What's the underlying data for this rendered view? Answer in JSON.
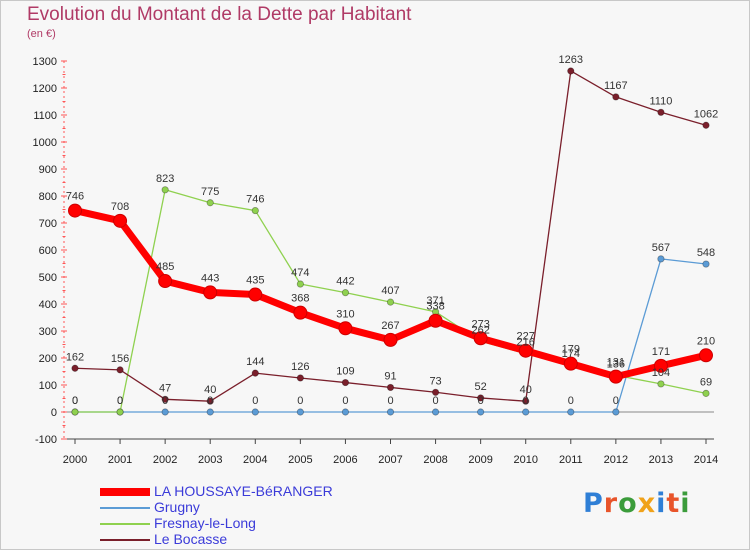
{
  "title": "Evolution du Montant de la Dette par Habitant",
  "subtitle": "(en €)",
  "logo": {
    "text": "Proxiti",
    "colors": [
      "#2f7fd6",
      "#e8542a",
      "#3b9c3b",
      "#f0a21a",
      "#2f7fd6",
      "#e8542a",
      "#3b9c3b"
    ]
  },
  "chart_data": {
    "type": "line",
    "title": "Evolution du Montant de la Dette par Habitant",
    "ylabel": "(en €)",
    "xlabel": "",
    "x": [
      "2000",
      "2001",
      "2002",
      "2003",
      "2004",
      "2005",
      "2006",
      "2007",
      "2008",
      "2009",
      "2010",
      "2011",
      "2012",
      "2013",
      "2014"
    ],
    "ylim": [
      -100,
      1300
    ],
    "yticks": [
      -100,
      0,
      100,
      200,
      300,
      400,
      500,
      600,
      700,
      800,
      900,
      1000,
      1100,
      1200,
      1300
    ],
    "grid": false,
    "legend_position": "bottom-left",
    "series": [
      {
        "name": "Grugny",
        "color": "#5b9bd5",
        "values": [
          0,
          0,
          0,
          0,
          0,
          0,
          0,
          0,
          0,
          0,
          0,
          0,
          0,
          567,
          548
        ]
      },
      {
        "name": "Fresnay-le-Long",
        "color": "#8fd14f",
        "values": [
          0,
          0,
          823,
          775,
          746,
          474,
          442,
          407,
          371,
          262,
          216,
          174,
          136,
          104,
          69
        ]
      },
      {
        "name": "Le Bocasse",
        "color": "#7a1f2b",
        "values": [
          162,
          156,
          47,
          40,
          144,
          126,
          109,
          91,
          73,
          52,
          40,
          1263,
          1167,
          1110,
          1062
        ]
      },
      {
        "name": "LA HOUSSAYE-BéRANGER",
        "color": "#ff0000",
        "values": [
          746,
          708,
          485,
          443,
          435,
          368,
          310,
          267,
          338,
          273,
          227,
          179,
          131,
          171,
          210
        ]
      }
    ],
    "legend": [
      "LA HOUSSAYE-BéRANGER",
      "Grugny",
      "Fresnay-le-Long",
      "Le Bocasse"
    ]
  }
}
